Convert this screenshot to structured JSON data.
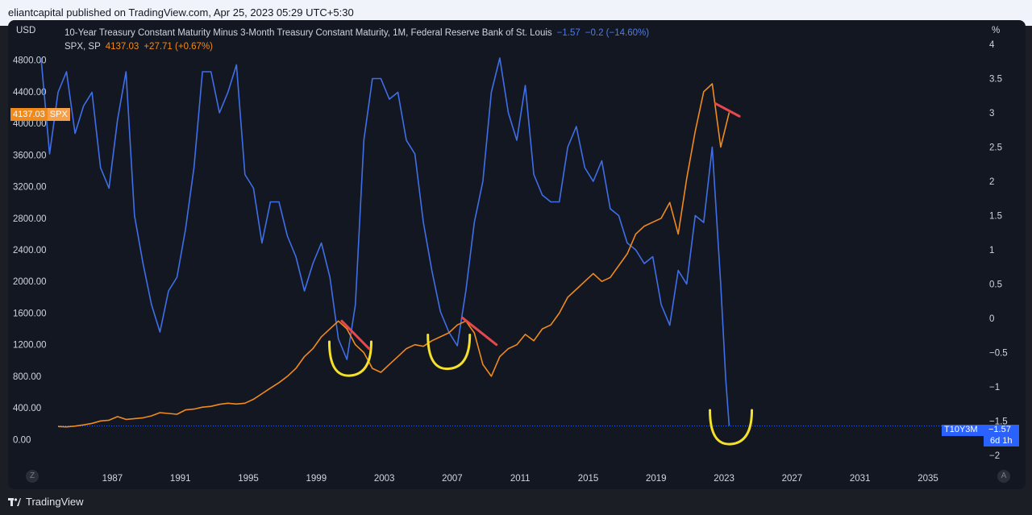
{
  "header": {
    "published_text": "eliantcapital published on TradingView.com, Apr 25, 2023 05:29 UTC+5:30"
  },
  "legend": {
    "line1_title": "10-Year Treasury Constant Maturity Minus 3-Month Treasury Constant Maturity, 1M, Federal Reserve Bank of St. Louis",
    "line1_value": "−1.57",
    "line1_change": "−0.2 (−14.60%)",
    "line2_title": "SPX, SP",
    "line2_value": "4137.03",
    "line2_change": "+27.71 (+0.67%)"
  },
  "axes": {
    "left_unit": "USD",
    "right_unit": "%"
  },
  "tags": {
    "spx_value": "4137.03",
    "spx_symbol": "SPX",
    "t10_symbol": "T10Y3M",
    "t10_value": "−1.57",
    "t10_countdown": "6d 1h"
  },
  "buttons": {
    "zoom": "Z",
    "auto": "A"
  },
  "footer": {
    "brand": "TradingView"
  },
  "colors": {
    "spread": "#3f6fe8",
    "spx": "#f08a1d",
    "annotation_red": "#e5484d",
    "annotation_yellow": "#f6e12a"
  },
  "chart_data": {
    "type": "line",
    "x_axis": {
      "ticks": [
        "1987",
        "1991",
        "1995",
        "1999",
        "2003",
        "2007",
        "2011",
        "2015",
        "2019",
        "2023",
        "2027",
        "2031",
        "2035"
      ],
      "range": [
        1983.8,
        2037.8
      ]
    },
    "y_left": {
      "unit": "USD",
      "range": [
        -200,
        5000
      ],
      "ticks": [
        "4800.00",
        "4400.00",
        "4000.00",
        "3600.00",
        "3200.00",
        "2800.00",
        "2400.00",
        "2000.00",
        "1600.00",
        "1200.00",
        "800.00",
        "400.00",
        "0.00"
      ]
    },
    "y_right": {
      "unit": "%",
      "range": [
        -2.0,
        4.0
      ],
      "ticks": [
        "4",
        "3.5",
        "3",
        "2.5",
        "2",
        "1.5",
        "1",
        "0.5",
        "0",
        "−0.5",
        "−1",
        "−1.5",
        "−2"
      ]
    },
    "series": [
      {
        "name": "10-Year Treasury Constant Maturity Minus 3-Month Treasury Constant Maturity",
        "axis": "right",
        "x": [
          1982.8,
          1983.3,
          1983.8,
          1984.3,
          1984.8,
          1985.3,
          1985.8,
          1986.3,
          1986.8,
          1987.3,
          1987.8,
          1988.3,
          1988.8,
          1989.3,
          1989.8,
          1990.3,
          1990.8,
          1991.3,
          1991.8,
          1992.3,
          1992.8,
          1993.3,
          1993.8,
          1994.3,
          1994.8,
          1995.3,
          1995.8,
          1996.3,
          1996.8,
          1997.3,
          1997.8,
          1998.3,
          1998.8,
          1999.3,
          1999.8,
          2000.3,
          2000.8,
          2001.3,
          2001.8,
          2002.3,
          2002.8,
          2003.3,
          2003.8,
          2004.3,
          2004.8,
          2005.3,
          2005.8,
          2006.3,
          2006.8,
          2007.3,
          2007.8,
          2008.3,
          2008.8,
          2009.3,
          2009.8,
          2010.3,
          2010.8,
          2011.3,
          2011.8,
          2012.3,
          2012.8,
          2013.3,
          2013.8,
          2014.3,
          2014.8,
          2015.3,
          2015.8,
          2016.3,
          2016.8,
          2017.3,
          2017.8,
          2018.3,
          2018.8,
          2019.3,
          2019.8,
          2020.3,
          2020.8,
          2021.3,
          2021.8,
          2022.3,
          2022.8,
          2023.1,
          2023.3
        ],
        "y": [
          3.8,
          2.4,
          3.3,
          3.6,
          2.7,
          3.1,
          3.3,
          2.2,
          1.9,
          2.9,
          3.6,
          1.5,
          0.8,
          0.2,
          -0.2,
          0.4,
          0.6,
          1.3,
          2.2,
          3.6,
          3.6,
          3.0,
          3.3,
          3.7,
          2.1,
          1.9,
          1.1,
          1.7,
          1.7,
          1.2,
          0.9,
          0.4,
          0.8,
          1.1,
          0.6,
          -0.3,
          -0.6,
          0.2,
          2.6,
          3.5,
          3.5,
          3.2,
          3.3,
          2.6,
          2.4,
          1.4,
          0.7,
          0.1,
          -0.2,
          -0.4,
          0.4,
          1.4,
          2.0,
          3.3,
          3.8,
          3.0,
          2.6,
          3.4,
          2.1,
          1.8,
          1.7,
          1.7,
          2.5,
          2.8,
          2.2,
          2.0,
          2.3,
          1.6,
          1.5,
          1.1,
          1.0,
          0.8,
          0.9,
          0.2,
          -0.1,
          0.7,
          0.5,
          1.5,
          1.4,
          2.5,
          0.5,
          -0.9,
          -1.57
        ]
      },
      {
        "name": "SPX",
        "axis": "left",
        "x": [
          1983.8,
          1984.3,
          1984.8,
          1985.3,
          1985.8,
          1986.3,
          1986.8,
          1987.3,
          1987.8,
          1988.3,
          1988.8,
          1989.3,
          1989.8,
          1990.3,
          1990.8,
          1991.3,
          1991.8,
          1992.3,
          1992.8,
          1993.3,
          1993.8,
          1994.3,
          1994.8,
          1995.3,
          1995.8,
          1996.3,
          1996.8,
          1997.3,
          1997.8,
          1998.3,
          1998.8,
          1999.3,
          1999.8,
          2000.3,
          2000.8,
          2001.3,
          2001.8,
          2002.3,
          2002.8,
          2003.3,
          2003.8,
          2004.3,
          2004.8,
          2005.3,
          2005.8,
          2006.3,
          2006.8,
          2007.3,
          2007.8,
          2008.3,
          2008.8,
          2009.3,
          2009.8,
          2010.3,
          2010.8,
          2011.3,
          2011.8,
          2012.3,
          2012.8,
          2013.3,
          2013.8,
          2014.3,
          2014.8,
          2015.3,
          2015.8,
          2016.3,
          2016.8,
          2017.3,
          2017.8,
          2018.3,
          2018.8,
          2019.3,
          2019.8,
          2020.3,
          2020.8,
          2021.3,
          2021.8,
          2022.3,
          2022.8,
          2023.3
        ],
        "y": [
          165,
          160,
          170,
          185,
          205,
          235,
          245,
          290,
          255,
          265,
          275,
          300,
          340,
          330,
          320,
          375,
          385,
          410,
          420,
          445,
          460,
          450,
          460,
          510,
          580,
          650,
          720,
          800,
          900,
          1050,
          1150,
          1300,
          1400,
          1500,
          1400,
          1200,
          1100,
          900,
          850,
          950,
          1050,
          1150,
          1200,
          1180,
          1250,
          1300,
          1350,
          1450,
          1500,
          1350,
          950,
          800,
          1050,
          1150,
          1200,
          1330,
          1250,
          1400,
          1450,
          1600,
          1800,
          1900,
          2000,
          2100,
          2000,
          2050,
          2200,
          2350,
          2600,
          2700,
          2750,
          2800,
          3000,
          2600,
          3300,
          3900,
          4400,
          4500,
          3700,
          4137.03
        ]
      }
    ],
    "annotations": [
      {
        "type": "arc",
        "color": "yellow",
        "x": 2001.0,
        "y": -0.6
      },
      {
        "type": "arc",
        "color": "yellow",
        "x": 2006.8,
        "y": -0.5
      },
      {
        "type": "arc",
        "color": "yellow",
        "x": 2023.4,
        "y": -1.6
      },
      {
        "type": "trendline",
        "color": "red",
        "x": [
          2000.5,
          2002.1
        ],
        "y": [
          1500,
          1150
        ]
      },
      {
        "type": "trendline",
        "color": "red",
        "x": [
          2007.6,
          2009.6
        ],
        "y": [
          1540,
          1200
        ]
      },
      {
        "type": "trendline",
        "color": "red",
        "x": [
          2022.5,
          2023.9
        ],
        "y": [
          4250,
          4090
        ]
      }
    ]
  }
}
